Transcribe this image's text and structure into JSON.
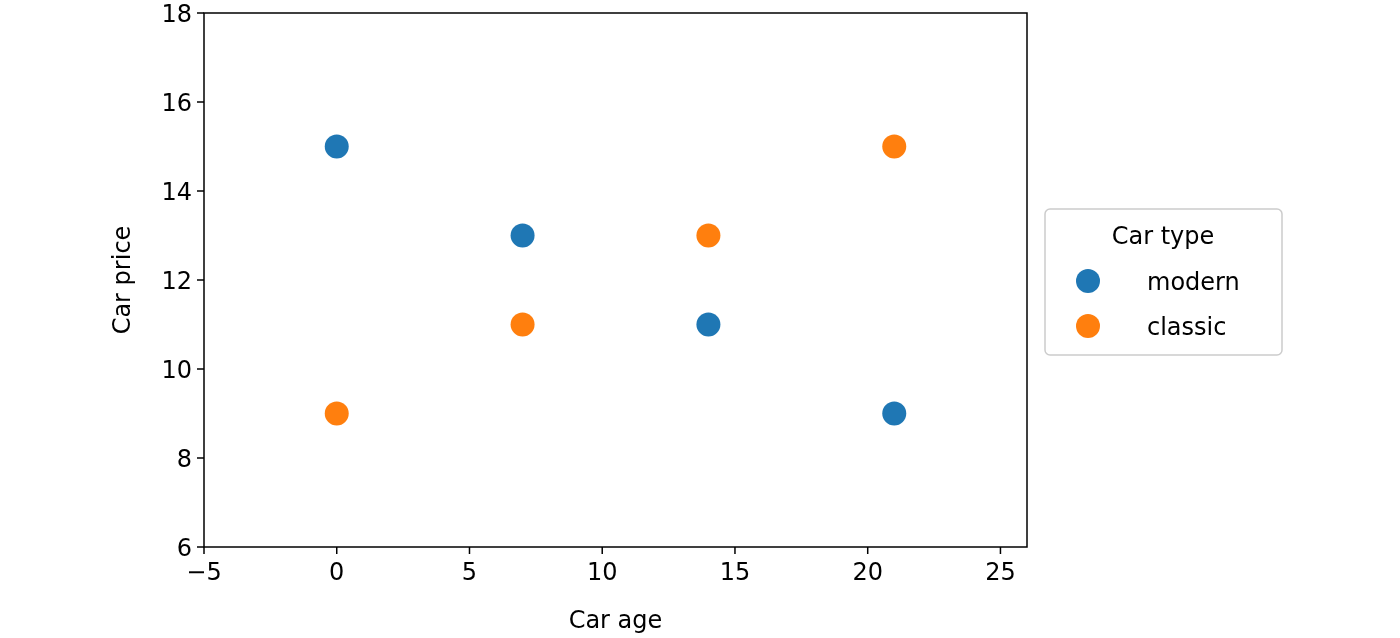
{
  "chart_data": {
    "type": "scatter",
    "xlabel": "Car age",
    "ylabel": "Car price",
    "legend_title": "Car type",
    "legend": "right",
    "marker": "circle",
    "grid": false,
    "xlim": [
      -5,
      26
    ],
    "xticks": [
      {
        "value": -5,
        "label": "−5"
      },
      0,
      5,
      10,
      15,
      20,
      25
    ],
    "ylim": [
      6,
      18
    ],
    "yticks": [
      6,
      8,
      10,
      12,
      14,
      16,
      18
    ],
    "series": [
      {
        "name": "modern",
        "color": "#1f77b4",
        "x": [
          0,
          7,
          14,
          21
        ],
        "values": [
          15,
          13,
          11,
          9
        ]
      },
      {
        "name": "classic",
        "color": "#ff7f0e",
        "x": [
          0,
          7,
          14,
          21
        ],
        "values": [
          9,
          11,
          13,
          15
        ]
      }
    ]
  }
}
